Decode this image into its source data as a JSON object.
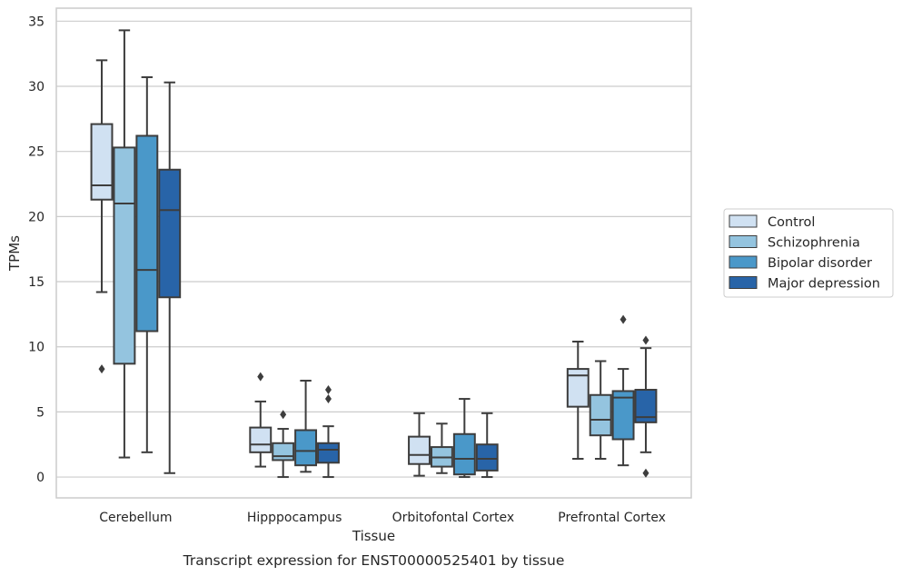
{
  "chart_data": {
    "type": "box",
    "title": "Transcript expression for ENST00000525401 by tissue",
    "xlabel": "Tissue",
    "ylabel": "TPMs",
    "ylim": [
      -1.6,
      36
    ],
    "yticks": [
      0,
      5,
      10,
      15,
      20,
      25,
      30,
      35
    ],
    "grid": "horizontal",
    "legend_position": "right",
    "categories": [
      "Cerebellum",
      "Hipppocampus",
      "Orbitofontal Cortex",
      "Prefrontal Cortex"
    ],
    "series": [
      {
        "name": "Control",
        "color": "#d0e1f2",
        "boxes": [
          {
            "whislo": 14.2,
            "q1": 21.3,
            "med": 22.4,
            "q3": 27.1,
            "whishi": 32.0,
            "fliers": [
              8.3
            ]
          },
          {
            "whislo": 0.8,
            "q1": 1.9,
            "med": 2.5,
            "q3": 3.8,
            "whishi": 5.8,
            "fliers": [
              7.7
            ]
          },
          {
            "whislo": 0.1,
            "q1": 1.0,
            "med": 1.7,
            "q3": 3.1,
            "whishi": 4.9,
            "fliers": []
          },
          {
            "whislo": 1.4,
            "q1": 5.4,
            "med": 7.8,
            "q3": 8.3,
            "whishi": 10.4,
            "fliers": []
          }
        ]
      },
      {
        "name": "Schizophrenia",
        "color": "#94c4df",
        "boxes": [
          {
            "whislo": 1.5,
            "q1": 8.7,
            "med": 21.0,
            "q3": 25.3,
            "whishi": 34.3,
            "fliers": []
          },
          {
            "whislo": 0.0,
            "q1": 1.3,
            "med": 1.6,
            "q3": 2.6,
            "whishi": 3.7,
            "fliers": [
              4.8
            ]
          },
          {
            "whislo": 0.3,
            "q1": 0.8,
            "med": 1.5,
            "q3": 2.3,
            "whishi": 4.1,
            "fliers": []
          },
          {
            "whislo": 1.4,
            "q1": 3.2,
            "med": 4.4,
            "q3": 6.3,
            "whishi": 8.9,
            "fliers": []
          }
        ]
      },
      {
        "name": "Bipolar disorder",
        "color": "#4a98c9",
        "boxes": [
          {
            "whislo": 1.9,
            "q1": 11.2,
            "med": 15.9,
            "q3": 26.2,
            "whishi": 30.7,
            "fliers": []
          },
          {
            "whislo": 0.4,
            "q1": 0.9,
            "med": 2.0,
            "q3": 3.6,
            "whishi": 7.4,
            "fliers": []
          },
          {
            "whislo": 0.0,
            "q1": 0.2,
            "med": 1.4,
            "q3": 3.3,
            "whishi": 6.0,
            "fliers": []
          },
          {
            "whislo": 0.9,
            "q1": 2.9,
            "med": 6.1,
            "q3": 6.6,
            "whishi": 8.3,
            "fliers": [
              12.1
            ]
          }
        ]
      },
      {
        "name": "Major depression",
        "color": "#2864a8",
        "boxes": [
          {
            "whislo": 0.3,
            "q1": 13.8,
            "med": 20.5,
            "q3": 23.6,
            "whishi": 30.3,
            "fliers": []
          },
          {
            "whislo": 0.0,
            "q1": 1.1,
            "med": 2.1,
            "q3": 2.6,
            "whishi": 3.9,
            "fliers": [
              6.0,
              6.7
            ]
          },
          {
            "whislo": 0.0,
            "q1": 0.5,
            "med": 1.4,
            "q3": 2.5,
            "whishi": 4.9,
            "fliers": []
          },
          {
            "whislo": 1.9,
            "q1": 4.2,
            "med": 4.6,
            "q3": 6.7,
            "whishi": 9.9,
            "fliers": [
              10.5,
              0.3
            ]
          }
        ]
      }
    ]
  }
}
